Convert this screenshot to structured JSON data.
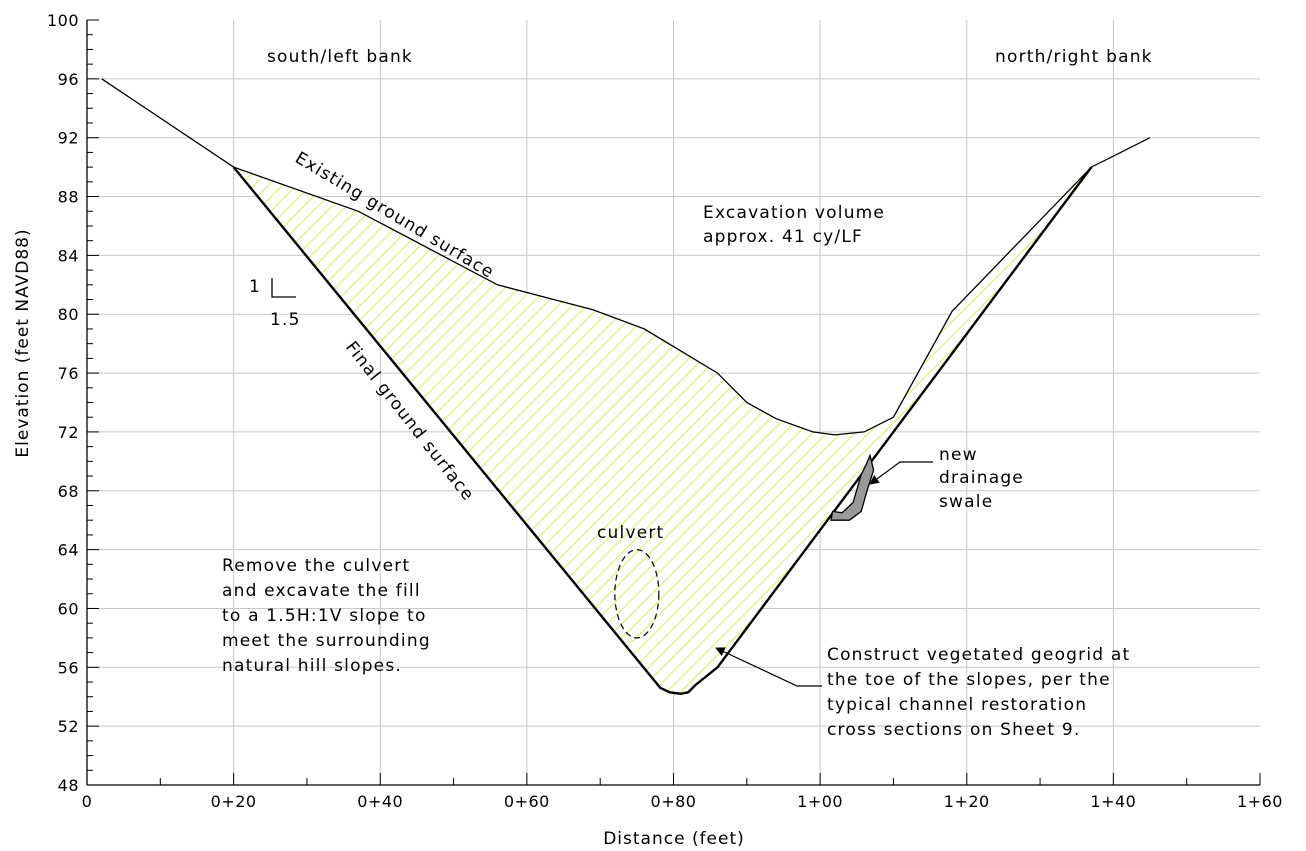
{
  "chart_data": {
    "type": "line",
    "xlabel": "Distance (feet)",
    "ylabel": "Elevation (feet NAVD88)",
    "xlim": [
      0,
      160
    ],
    "ylim": [
      48,
      100
    ],
    "x_ticks": [
      {
        "value": 0,
        "label": "0"
      },
      {
        "value": 20,
        "label": "0+20"
      },
      {
        "value": 40,
        "label": "0+40"
      },
      {
        "value": 60,
        "label": "0+60"
      },
      {
        "value": 80,
        "label": "0+80"
      },
      {
        "value": 100,
        "label": "1+00"
      },
      {
        "value": 120,
        "label": "1+20"
      },
      {
        "value": 140,
        "label": "1+40"
      },
      {
        "value": 160,
        "label": "1+60"
      }
    ],
    "y_ticks": [
      {
        "value": 48,
        "label": "48"
      },
      {
        "value": 52,
        "label": "52"
      },
      {
        "value": 56,
        "label": "56"
      },
      {
        "value": 60,
        "label": "60"
      },
      {
        "value": 64,
        "label": "64"
      },
      {
        "value": 68,
        "label": "68"
      },
      {
        "value": 72,
        "label": "72"
      },
      {
        "value": 76,
        "label": "76"
      },
      {
        "value": 80,
        "label": "80"
      },
      {
        "value": 84,
        "label": "84"
      },
      {
        "value": 88,
        "label": "88"
      },
      {
        "value": 92,
        "label": "92"
      },
      {
        "value": 96,
        "label": "96"
      },
      {
        "value": 100,
        "label": "100"
      }
    ],
    "grid": true,
    "series": [
      {
        "label": "Existing ground surface",
        "x": [
          2,
          20,
          37,
          56,
          69,
          76,
          86,
          90,
          94,
          99,
          102,
          106,
          108,
          110,
          118,
          137,
          141,
          145
        ],
        "y": [
          96,
          90,
          87,
          82,
          80.3,
          79,
          76,
          74,
          72.9,
          72,
          71.8,
          72,
          72.5,
          73,
          80.2,
          90,
          91,
          92
        ]
      },
      {
        "label": "Final ground surface",
        "x": [
          20,
          78.2,
          79.5,
          81,
          82,
          83,
          86,
          137
        ],
        "y": [
          90,
          54.6,
          54.3,
          54.2,
          54.3,
          54.8,
          56,
          90
        ]
      },
      {
        "label": "new drainage swale",
        "x": [
          101.7,
          103,
          104.5,
          105.6,
          106.3,
          106.8,
          107.3,
          106.4,
          105.6,
          104,
          103,
          101.5
        ],
        "y": [
          66.6,
          66.5,
          67.2,
          69.1,
          69.8,
          70.4,
          69.4,
          68,
          66.6,
          66,
          66,
          66
        ]
      },
      {
        "label": "culvert",
        "shape": "ellipse",
        "center": [
          75,
          61
        ],
        "rx": 3,
        "ry": 3
      }
    ],
    "labels": {
      "south_bank": "south/left bank",
      "north_bank": "north/right bank",
      "existing": "Existing ground surface",
      "final": "Final ground surface",
      "excavation_line1": "Excavation volume",
      "excavation_line2": "approx. 41 cy/LF",
      "slope_v": "1",
      "slope_h": "1.5",
      "culvert": "culvert",
      "swale_line1": "new",
      "swale_line2": "drainage",
      "swale_line3": "swale",
      "remove_lines": [
        "Remove the culvert",
        "and excavate the fill",
        "to a 1.5H:1V slope to",
        "meet the surrounding",
        "natural hill slopes."
      ],
      "geogrid_lines": [
        "Construct vegetated geogrid at",
        "the toe of the slopes, per the",
        "typical channel restoration",
        "cross sections on Sheet 9."
      ]
    },
    "colors": {
      "fill_hatch": "#e8f08a",
      "swale_fill": "#999999",
      "grid": "#c8c8c8",
      "line": "#000000"
    }
  }
}
